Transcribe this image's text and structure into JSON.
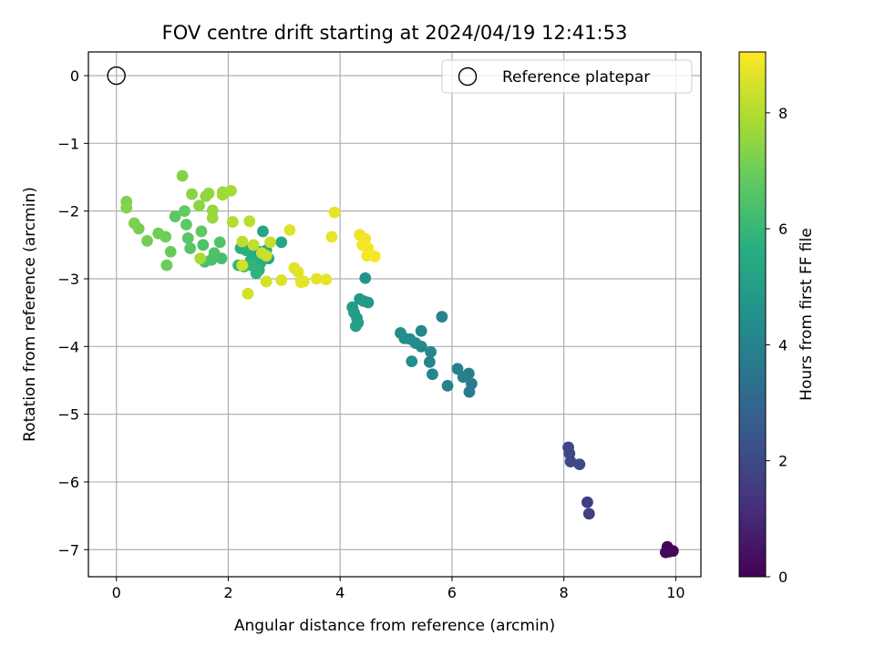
{
  "chart_data": {
    "type": "scatter",
    "title": "FOV centre drift starting at 2024/04/19 12:41:53",
    "xlabel": "Angular distance from reference (arcmin)",
    "ylabel": "Rotation from reference (arcmin)",
    "xlim": [
      -0.5,
      10.45
    ],
    "ylim": [
      -7.4,
      0.35
    ],
    "xticks": [
      0,
      2,
      4,
      6,
      8,
      10
    ],
    "xtick_labels": [
      "0",
      "2",
      "4",
      "6",
      "8",
      "10"
    ],
    "yticks": [
      0,
      -1,
      -2,
      -3,
      -4,
      -5,
      -6,
      -7
    ],
    "ytick_labels": [
      "0",
      "−1",
      "−2",
      "−3",
      "−4",
      "−5",
      "−6",
      "−7"
    ],
    "grid": true,
    "colormap": "viridis",
    "colorbar": {
      "label": "Hours from first FF file",
      "range": [
        0,
        9.05
      ],
      "ticks": [
        0,
        2,
        4,
        6,
        8
      ],
      "tick_labels": [
        "0",
        "2",
        "4",
        "6",
        "8"
      ]
    },
    "legend": {
      "location": "top-right",
      "entries": [
        {
          "label": "Reference platepar",
          "marker": "open-circle"
        }
      ]
    },
    "reference_point": {
      "x": 0,
      "y": 0
    },
    "series": [
      {
        "name": "FOV centre drift",
        "points": [
          {
            "x": 9.85,
            "y": -6.96,
            "h": 0.05
          },
          {
            "x": 9.88,
            "y": -7.03,
            "h": 0.1
          },
          {
            "x": 9.95,
            "y": -7.02,
            "h": 0.15
          },
          {
            "x": 9.82,
            "y": -7.04,
            "h": 0.2
          },
          {
            "x": 8.42,
            "y": -6.3,
            "h": 1.6
          },
          {
            "x": 8.45,
            "y": -6.47,
            "h": 1.7
          },
          {
            "x": 8.08,
            "y": -5.49,
            "h": 1.9
          },
          {
            "x": 8.1,
            "y": -5.58,
            "h": 1.95
          },
          {
            "x": 8.12,
            "y": -5.7,
            "h": 2.0
          },
          {
            "x": 8.28,
            "y": -5.74,
            "h": 2.05
          },
          {
            "x": 6.31,
            "y": -4.67,
            "h": 3.7
          },
          {
            "x": 6.35,
            "y": -4.55,
            "h": 3.75
          },
          {
            "x": 6.3,
            "y": -4.4,
            "h": 3.8
          },
          {
            "x": 6.2,
            "y": -4.45,
            "h": 3.85
          },
          {
            "x": 6.1,
            "y": -4.33,
            "h": 3.9
          },
          {
            "x": 5.92,
            "y": -4.58,
            "h": 3.95
          },
          {
            "x": 5.82,
            "y": -3.56,
            "h": 4.0
          },
          {
            "x": 5.65,
            "y": -4.41,
            "h": 4.05
          },
          {
            "x": 5.6,
            "y": -4.23,
            "h": 4.1
          },
          {
            "x": 5.62,
            "y": -4.08,
            "h": 4.15
          },
          {
            "x": 5.45,
            "y": -4.0,
            "h": 4.2
          },
          {
            "x": 5.45,
            "y": -3.77,
            "h": 4.25
          },
          {
            "x": 5.35,
            "y": -3.95,
            "h": 4.3
          },
          {
            "x": 5.25,
            "y": -3.89,
            "h": 4.35
          },
          {
            "x": 5.15,
            "y": -3.88,
            "h": 4.4
          },
          {
            "x": 5.08,
            "y": -3.8,
            "h": 4.45
          },
          {
            "x": 5.28,
            "y": -4.22,
            "h": 4.5
          },
          {
            "x": 4.45,
            "y": -2.99,
            "h": 4.7
          },
          {
            "x": 4.5,
            "y": -3.35,
            "h": 4.75
          },
          {
            "x": 4.42,
            "y": -3.33,
            "h": 4.8
          },
          {
            "x": 4.35,
            "y": -3.3,
            "h": 4.85
          },
          {
            "x": 4.22,
            "y": -3.42,
            "h": 4.9
          },
          {
            "x": 4.25,
            "y": -3.5,
            "h": 4.95
          },
          {
            "x": 4.3,
            "y": -3.58,
            "h": 5.0
          },
          {
            "x": 4.32,
            "y": -3.65,
            "h": 5.05
          },
          {
            "x": 4.28,
            "y": -3.7,
            "h": 5.1
          },
          {
            "x": 2.62,
            "y": -2.3,
            "h": 5.3
          },
          {
            "x": 2.95,
            "y": -2.46,
            "h": 5.35
          },
          {
            "x": 2.68,
            "y": -2.58,
            "h": 5.4
          },
          {
            "x": 2.72,
            "y": -2.7,
            "h": 5.45
          },
          {
            "x": 2.55,
            "y": -2.6,
            "h": 5.5
          },
          {
            "x": 2.48,
            "y": -2.66,
            "h": 5.55
          },
          {
            "x": 2.4,
            "y": -2.73,
            "h": 5.6
          },
          {
            "x": 2.58,
            "y": -2.76,
            "h": 5.65
          },
          {
            "x": 2.22,
            "y": -2.55,
            "h": 5.7
          },
          {
            "x": 2.32,
            "y": -2.58,
            "h": 5.75
          },
          {
            "x": 2.5,
            "y": -2.92,
            "h": 5.8
          },
          {
            "x": 2.55,
            "y": -2.87,
            "h": 5.85
          },
          {
            "x": 2.4,
            "y": -2.8,
            "h": 5.9
          },
          {
            "x": 2.18,
            "y": -2.8,
            "h": 6.0
          },
          {
            "x": 2.28,
            "y": -2.82,
            "h": 6.1
          },
          {
            "x": 1.88,
            "y": -2.7,
            "h": 6.3
          },
          {
            "x": 1.7,
            "y": -2.72,
            "h": 6.35
          },
          {
            "x": 1.58,
            "y": -2.75,
            "h": 6.4
          },
          {
            "x": 1.75,
            "y": -2.62,
            "h": 6.45
          },
          {
            "x": 1.55,
            "y": -2.5,
            "h": 6.5
          },
          {
            "x": 1.85,
            "y": -2.46,
            "h": 6.55
          },
          {
            "x": 1.32,
            "y": -2.55,
            "h": 6.6
          },
          {
            "x": 1.28,
            "y": -2.4,
            "h": 6.65
          },
          {
            "x": 1.05,
            "y": -2.08,
            "h": 6.7
          },
          {
            "x": 1.25,
            "y": -2.2,
            "h": 6.75
          },
          {
            "x": 1.52,
            "y": -2.3,
            "h": 6.8
          },
          {
            "x": 1.22,
            "y": -2.0,
            "h": 6.85
          },
          {
            "x": 0.97,
            "y": -2.6,
            "h": 6.9
          },
          {
            "x": 0.9,
            "y": -2.8,
            "h": 6.95
          },
          {
            "x": 0.88,
            "y": -2.38,
            "h": 7.0
          },
          {
            "x": 0.75,
            "y": -2.33,
            "h": 7.05
          },
          {
            "x": 0.55,
            "y": -2.44,
            "h": 7.1
          },
          {
            "x": 0.4,
            "y": -2.26,
            "h": 7.15
          },
          {
            "x": 0.32,
            "y": -2.18,
            "h": 7.2
          },
          {
            "x": 0.18,
            "y": -1.86,
            "h": 7.25
          },
          {
            "x": 0.18,
            "y": -1.95,
            "h": 7.3
          },
          {
            "x": 1.18,
            "y": -1.48,
            "h": 7.35
          },
          {
            "x": 1.35,
            "y": -1.75,
            "h": 7.4
          },
          {
            "x": 1.48,
            "y": -1.92,
            "h": 7.45
          },
          {
            "x": 1.6,
            "y": -1.78,
            "h": 7.5
          },
          {
            "x": 1.65,
            "y": -1.74,
            "h": 7.55
          },
          {
            "x": 1.72,
            "y": -1.99,
            "h": 7.6
          },
          {
            "x": 1.72,
            "y": -2.1,
            "h": 7.65
          },
          {
            "x": 1.9,
            "y": -1.72,
            "h": 7.7
          },
          {
            "x": 1.9,
            "y": -1.76,
            "h": 7.75
          },
          {
            "x": 2.05,
            "y": -1.7,
            "h": 7.8
          },
          {
            "x": 1.5,
            "y": -2.7,
            "h": 7.85
          },
          {
            "x": 2.08,
            "y": -2.16,
            "h": 8.0
          },
          {
            "x": 2.38,
            "y": -2.15,
            "h": 8.1
          },
          {
            "x": 2.25,
            "y": -2.45,
            "h": 8.15
          },
          {
            "x": 2.45,
            "y": -2.5,
            "h": 8.2
          },
          {
            "x": 2.75,
            "y": -2.46,
            "h": 8.25
          },
          {
            "x": 2.6,
            "y": -2.62,
            "h": 8.3
          },
          {
            "x": 2.68,
            "y": -2.66,
            "h": 8.35
          },
          {
            "x": 2.25,
            "y": -2.8,
            "h": 8.4
          },
          {
            "x": 2.35,
            "y": -3.22,
            "h": 8.45
          },
          {
            "x": 2.68,
            "y": -3.04,
            "h": 8.5
          },
          {
            "x": 2.95,
            "y": -3.02,
            "h": 8.55
          },
          {
            "x": 3.1,
            "y": -2.28,
            "h": 8.6
          },
          {
            "x": 3.18,
            "y": -2.84,
            "h": 8.62
          },
          {
            "x": 3.25,
            "y": -2.9,
            "h": 8.65
          },
          {
            "x": 3.3,
            "y": -3.05,
            "h": 8.68
          },
          {
            "x": 3.35,
            "y": -3.04,
            "h": 8.7
          },
          {
            "x": 3.58,
            "y": -3.0,
            "h": 8.72
          },
          {
            "x": 3.75,
            "y": -3.01,
            "h": 8.74
          },
          {
            "x": 3.85,
            "y": -2.38,
            "h": 8.76
          },
          {
            "x": 3.9,
            "y": -2.02,
            "h": 8.78
          },
          {
            "x": 4.35,
            "y": -2.35,
            "h": 8.85
          },
          {
            "x": 4.45,
            "y": -2.41,
            "h": 8.88
          },
          {
            "x": 4.4,
            "y": -2.5,
            "h": 8.9
          },
          {
            "x": 4.5,
            "y": -2.55,
            "h": 8.92
          },
          {
            "x": 4.48,
            "y": -2.66,
            "h": 8.94
          },
          {
            "x": 4.62,
            "y": -2.67,
            "h": 8.97
          }
        ]
      }
    ]
  }
}
